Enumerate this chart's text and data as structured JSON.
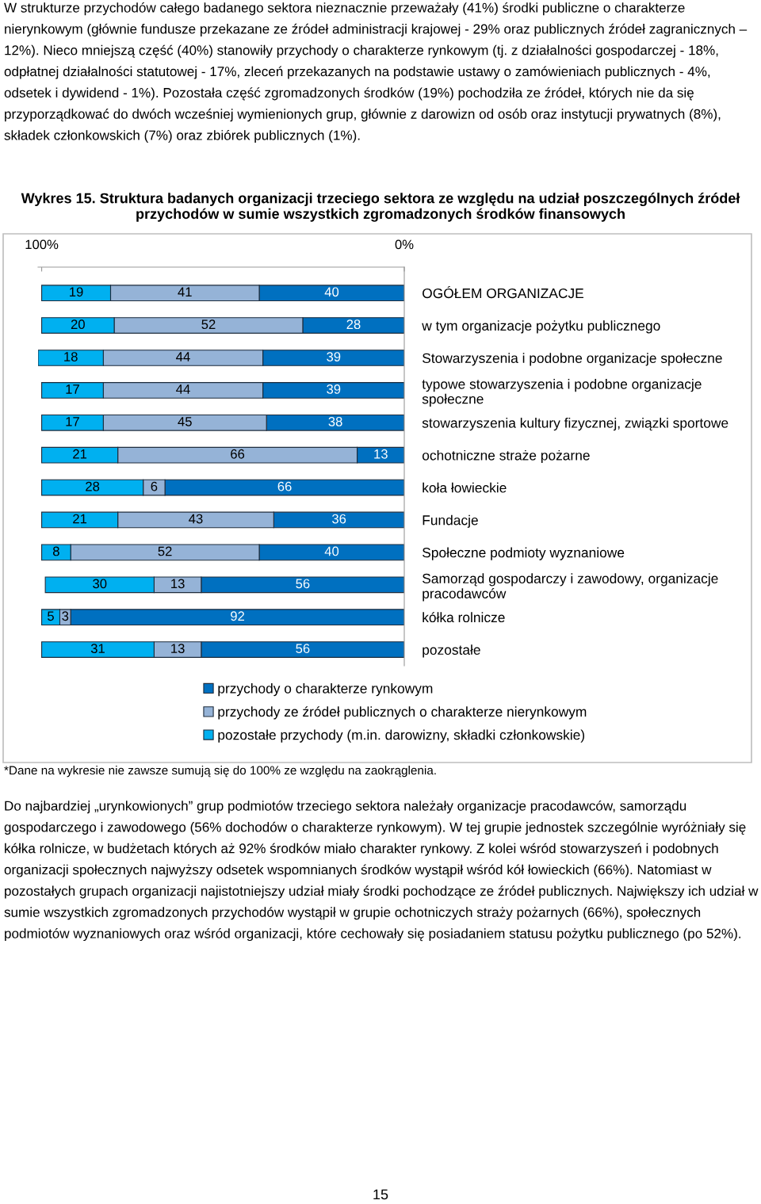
{
  "chart_data": {
    "type": "bar",
    "orientation": "horizontal",
    "stacked": true,
    "title": "Wykres 15. Struktura badanych organizacji trzeciego sektora ze względu na udział poszczególnych źródeł przychodów w sumie wszystkich zgromadzonych środków finansowych",
    "categories": [
      "OGÓŁEM ORGANIZACJE",
      "w tym organizacje pożytku publicznego",
      "Stowarzyszenia i podobne organizacje społeczne",
      "typowe stowarzyszenia i podobne organizacje społeczne",
      "stowarzyszenia kultury fizycznej, związki sportowe",
      "ochotniczne straże pożarne",
      "koła łowieckie",
      "Fundacje",
      "Społeczne podmioty wyznaniowe",
      "Samorząd gospodarczy i zawodowy, organizacje pracodawców",
      "kółka rolnicze",
      "pozostałe"
    ],
    "series": [
      {
        "name": "przychody o charakterze rynkowym",
        "color": "#0070c0",
        "values": [
          40,
          28,
          39,
          39,
          38,
          13,
          66,
          36,
          40,
          56,
          92,
          56
        ]
      },
      {
        "name": "przychody ze źródeł publicznych o charakterze nierynkowym",
        "color": "#95b3d7",
        "values": [
          41,
          52,
          44,
          44,
          45,
          66,
          6,
          43,
          52,
          13,
          3,
          13
        ]
      },
      {
        "name": "pozostałe przychody (m.in. darowizny, składki członkowskie)",
        "color": "#00b0f0",
        "values": [
          19,
          20,
          18,
          17,
          17,
          21,
          28,
          21,
          8,
          30,
          5,
          31
        ]
      }
    ],
    "xlim": [
      101,
      0
    ],
    "xticks": [
      {
        "value": 100,
        "label": "100%"
      },
      {
        "value": 0,
        "label": "0%"
      }
    ],
    "data_labels": true,
    "legend": "bottom",
    "grid": false,
    "annotations": [
      "W strukturze przychodów całego badanego sektora nieznacznie przeważały (41%) środki publiczne o charakterze nierynkowym (głównie fundusze przekazane ze źródeł administracji krajowej - 29% oraz publicznych źródeł zagranicznych – 12%). Nieco mniejszą część (40%) stanowiły przychody o charakterze rynkowym (tj. z działalności gospodarczej - 18%, odpłatnej działalności statutowej - 17%, zleceń przekazanych na podstawie ustawy o zamówieniach publicznych - 4%, odsetek i dywidend - 1%). Pozostała część zgromadzonych środków (19%) pochodziła ze źródeł, których nie da się przyporządkować do dwóch wcześniej wymienionych grup, głównie z darowizn od osób oraz instytucji prywatnych (8%), składek członkowskich (7%) oraz zbiórek publicznych (1%).",
      "*Dane na wykresie nie zawsze sumują się do 100% ze względu na zaokrąglenia.",
      "Do najbardziej „urynkowionych” grup podmiotów trzeciego sektora należały organizacje pracodawców, samorządu gospodarczego i zawodowego (56% dochodów o charakterze rynkowym). W tej grupie jednostek szczególnie wyróżniały się kółka rolnicze, w budżetach których aż 92% środków miało charakter rynkowy. Z kolei wśród stowarzyszeń i podobnych organizacji społecznych najwyższy odsetek wspomnianych środków wystąpił wśród kół łowieckich (66%). Natomiast w pozostałych grupach organizacji najistotniejszy udział miały środki pochodzące ze źródeł publicznych. Największy ich udział w sumie wszystkich zgromadzonych przychodów wystąpił w grupie ochotniczych straży pożarnych (66%), społecznych podmiotów wyznaniowych oraz wśród organizacji, które cechowały się posiadaniem statusu pożytku publicznego (po 52%).",
      "15"
    ]
  }
}
